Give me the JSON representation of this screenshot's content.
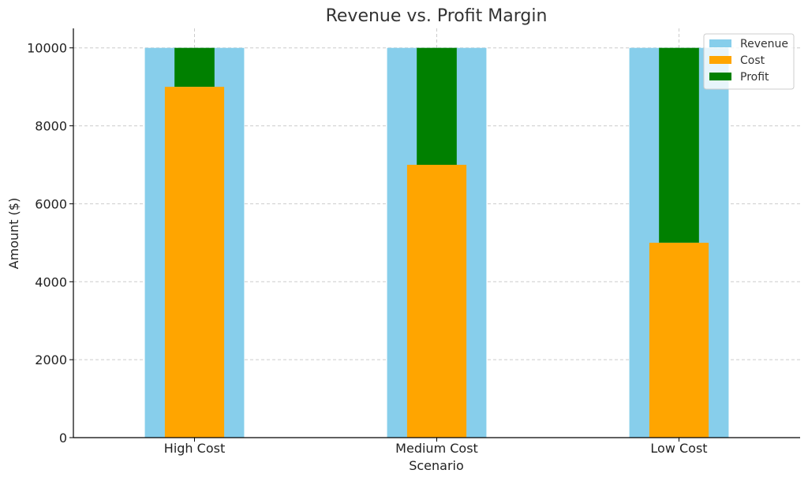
{
  "chart_data": {
    "type": "bar",
    "title": "Revenue vs. Profit Margin",
    "xlabel": "Scenario",
    "ylabel": "Amount ($)",
    "categories": [
      "High Cost",
      "Medium Cost",
      "Low Cost"
    ],
    "series": [
      {
        "name": "Revenue",
        "color": "#87ceeb",
        "values": [
          10000,
          10000,
          10000
        ]
      },
      {
        "name": "Cost",
        "color": "#ffa500",
        "values": [
          9000,
          7000,
          5000
        ]
      },
      {
        "name": "Profit",
        "color": "#008000",
        "values": [
          1000,
          3000,
          5000
        ],
        "stacked_on": "Cost"
      }
    ],
    "ylim": [
      0,
      10500
    ],
    "yticks": [
      0,
      2000,
      4000,
      6000,
      8000,
      10000
    ],
    "grid": true,
    "legend_position": "top-right"
  }
}
